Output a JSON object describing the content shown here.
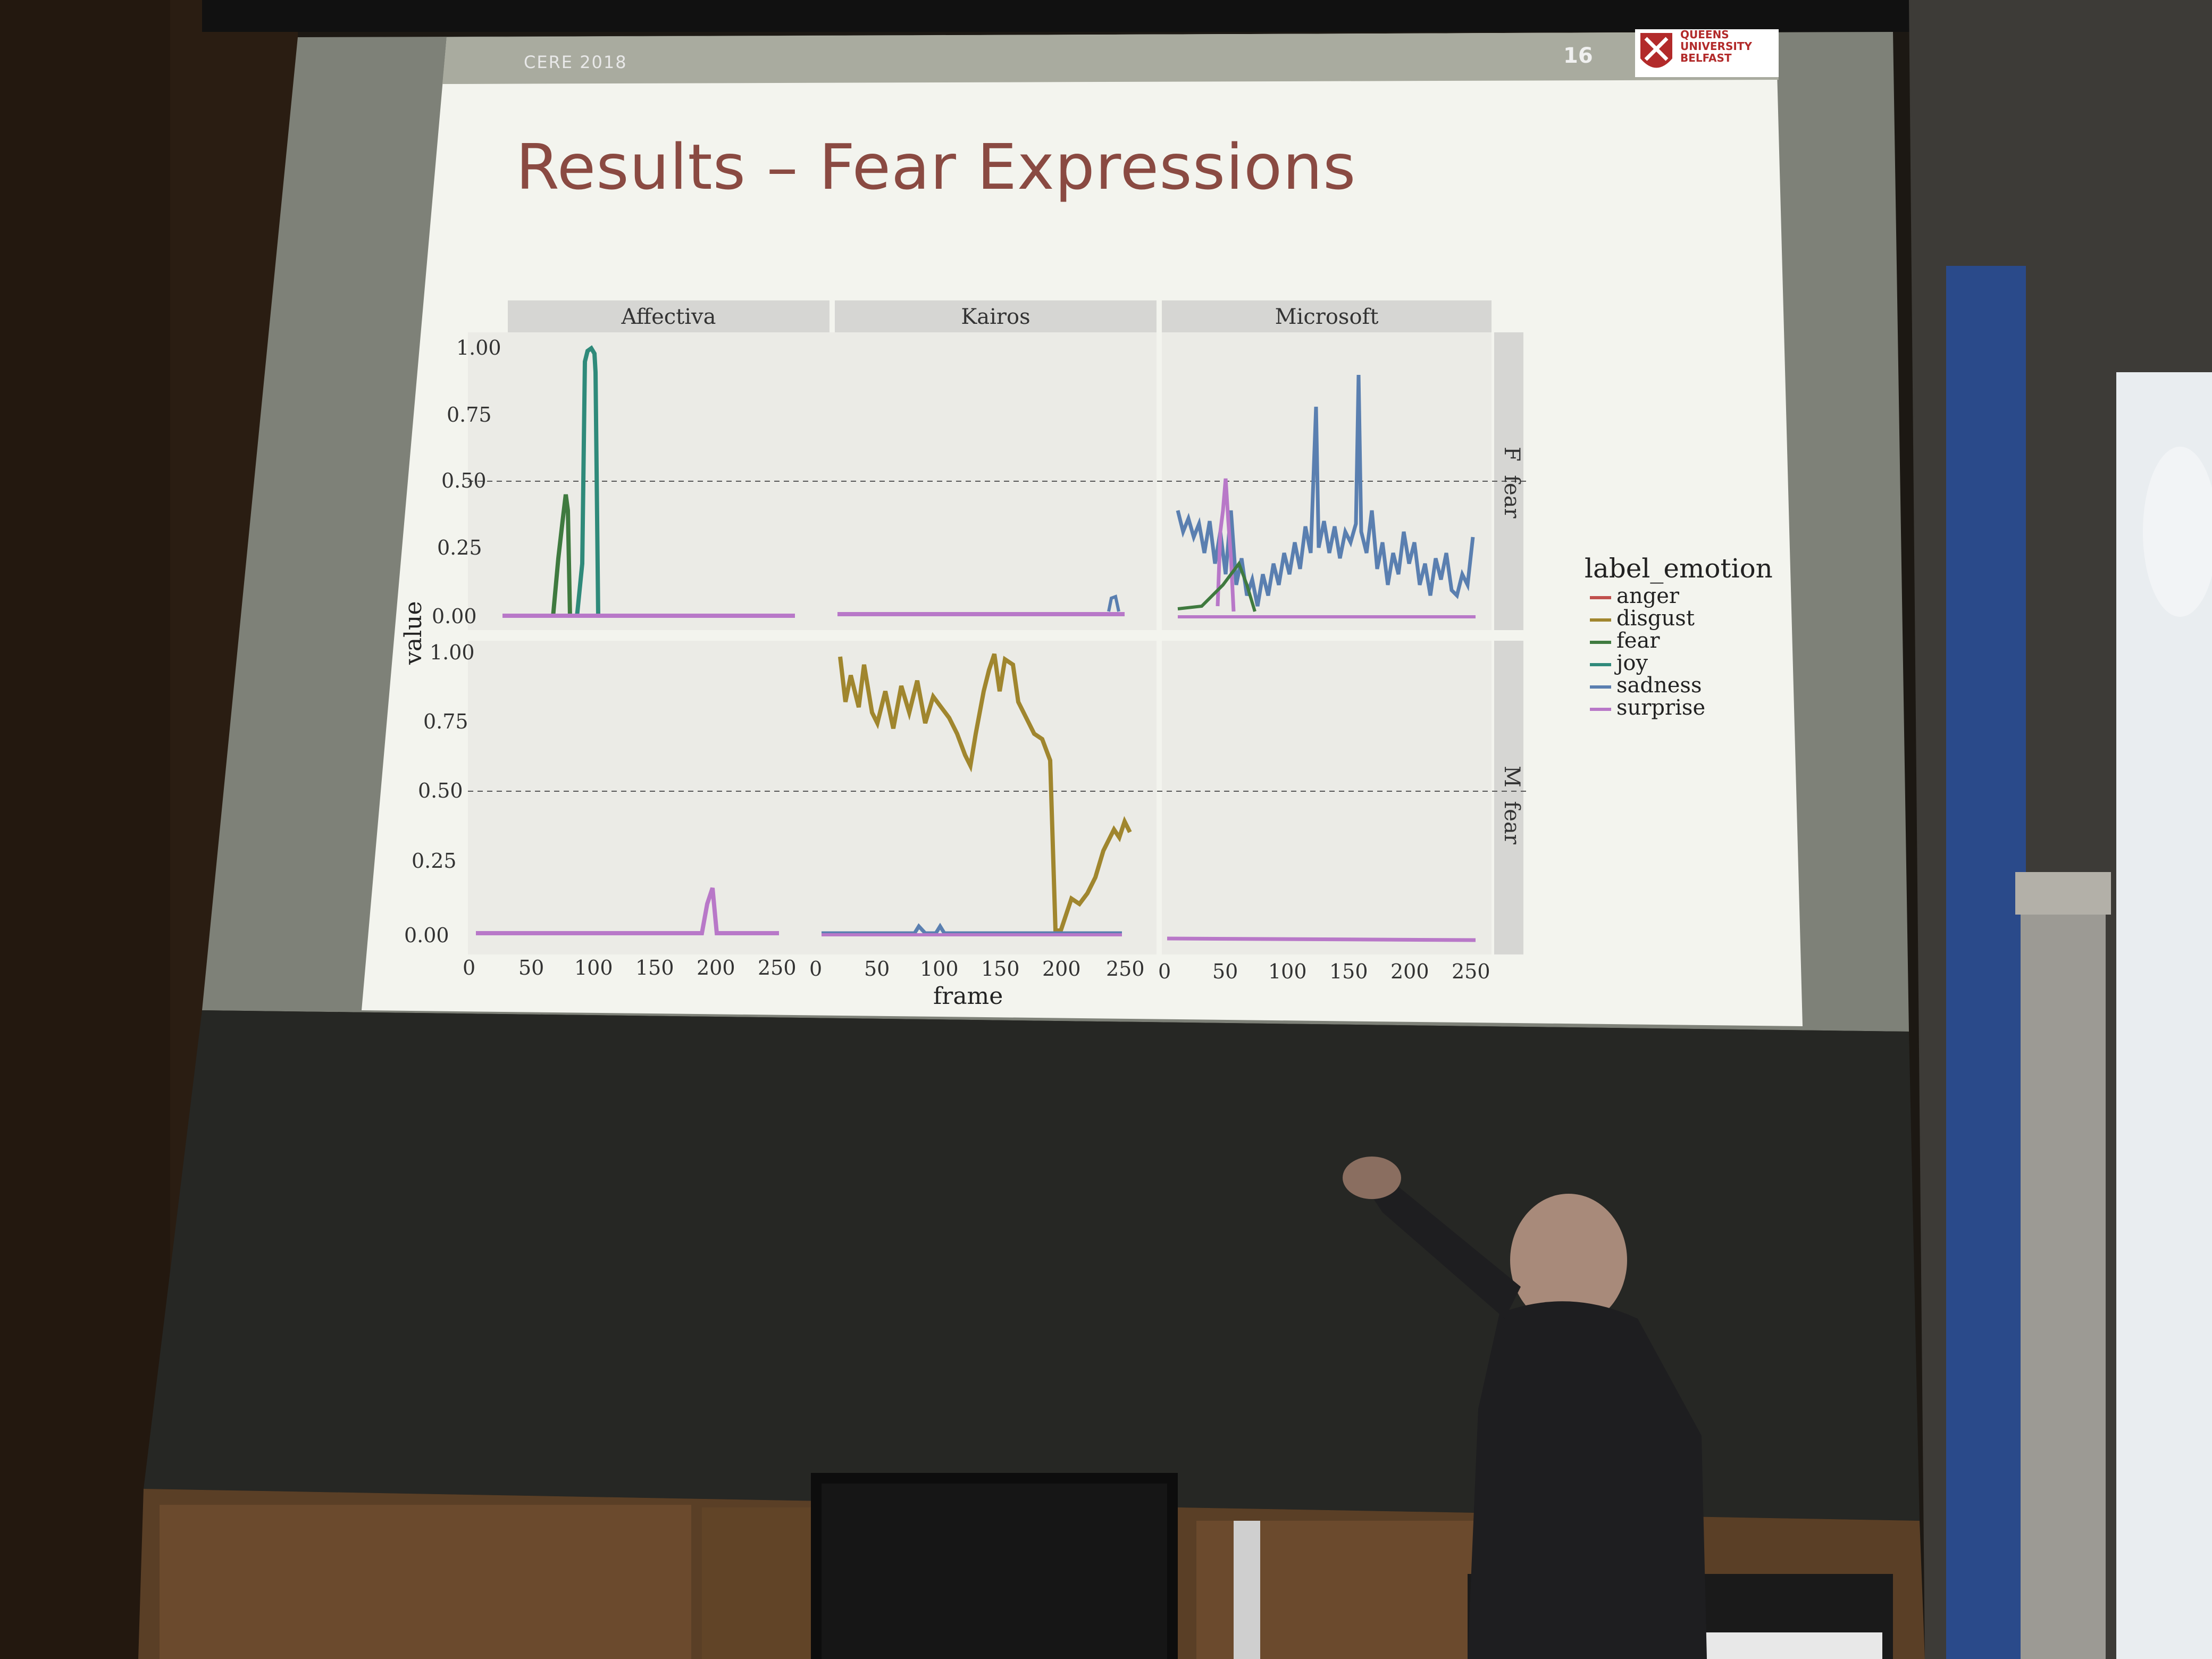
{
  "slide": {
    "conference": "CERE 2018",
    "page_number": "16",
    "logo_text": "QUEENS UNIVERSITY BELFAST",
    "title": "Results – Fear Expressions"
  },
  "chart": {
    "facet_columns": [
      "Affectiva",
      "Kairos",
      "Microsoft"
    ],
    "facet_rows": [
      {
        "label": "F",
        "emotion": "fear"
      },
      {
        "label": "M",
        "emotion": "fear"
      }
    ],
    "y_ticks": [
      "1.00",
      "0.75",
      "0.50",
      "0.25",
      "0.00"
    ],
    "x_ticks": [
      "0",
      "50",
      "100",
      "150",
      "200",
      "250"
    ],
    "xlabel": "frame",
    "ylabel": "value",
    "legend": {
      "title": "label_emotion",
      "items": [
        {
          "label": "anger",
          "color": "#c0504d"
        },
        {
          "label": "disgust",
          "color": "#a0862e"
        },
        {
          "label": "fear",
          "color": "#3f7a3f"
        },
        {
          "label": "joy",
          "color": "#2f8a7a"
        },
        {
          "label": "sadness",
          "color": "#5a7fb0"
        },
        {
          "label": "surprise",
          "color": "#b878c8"
        }
      ]
    }
  }
}
